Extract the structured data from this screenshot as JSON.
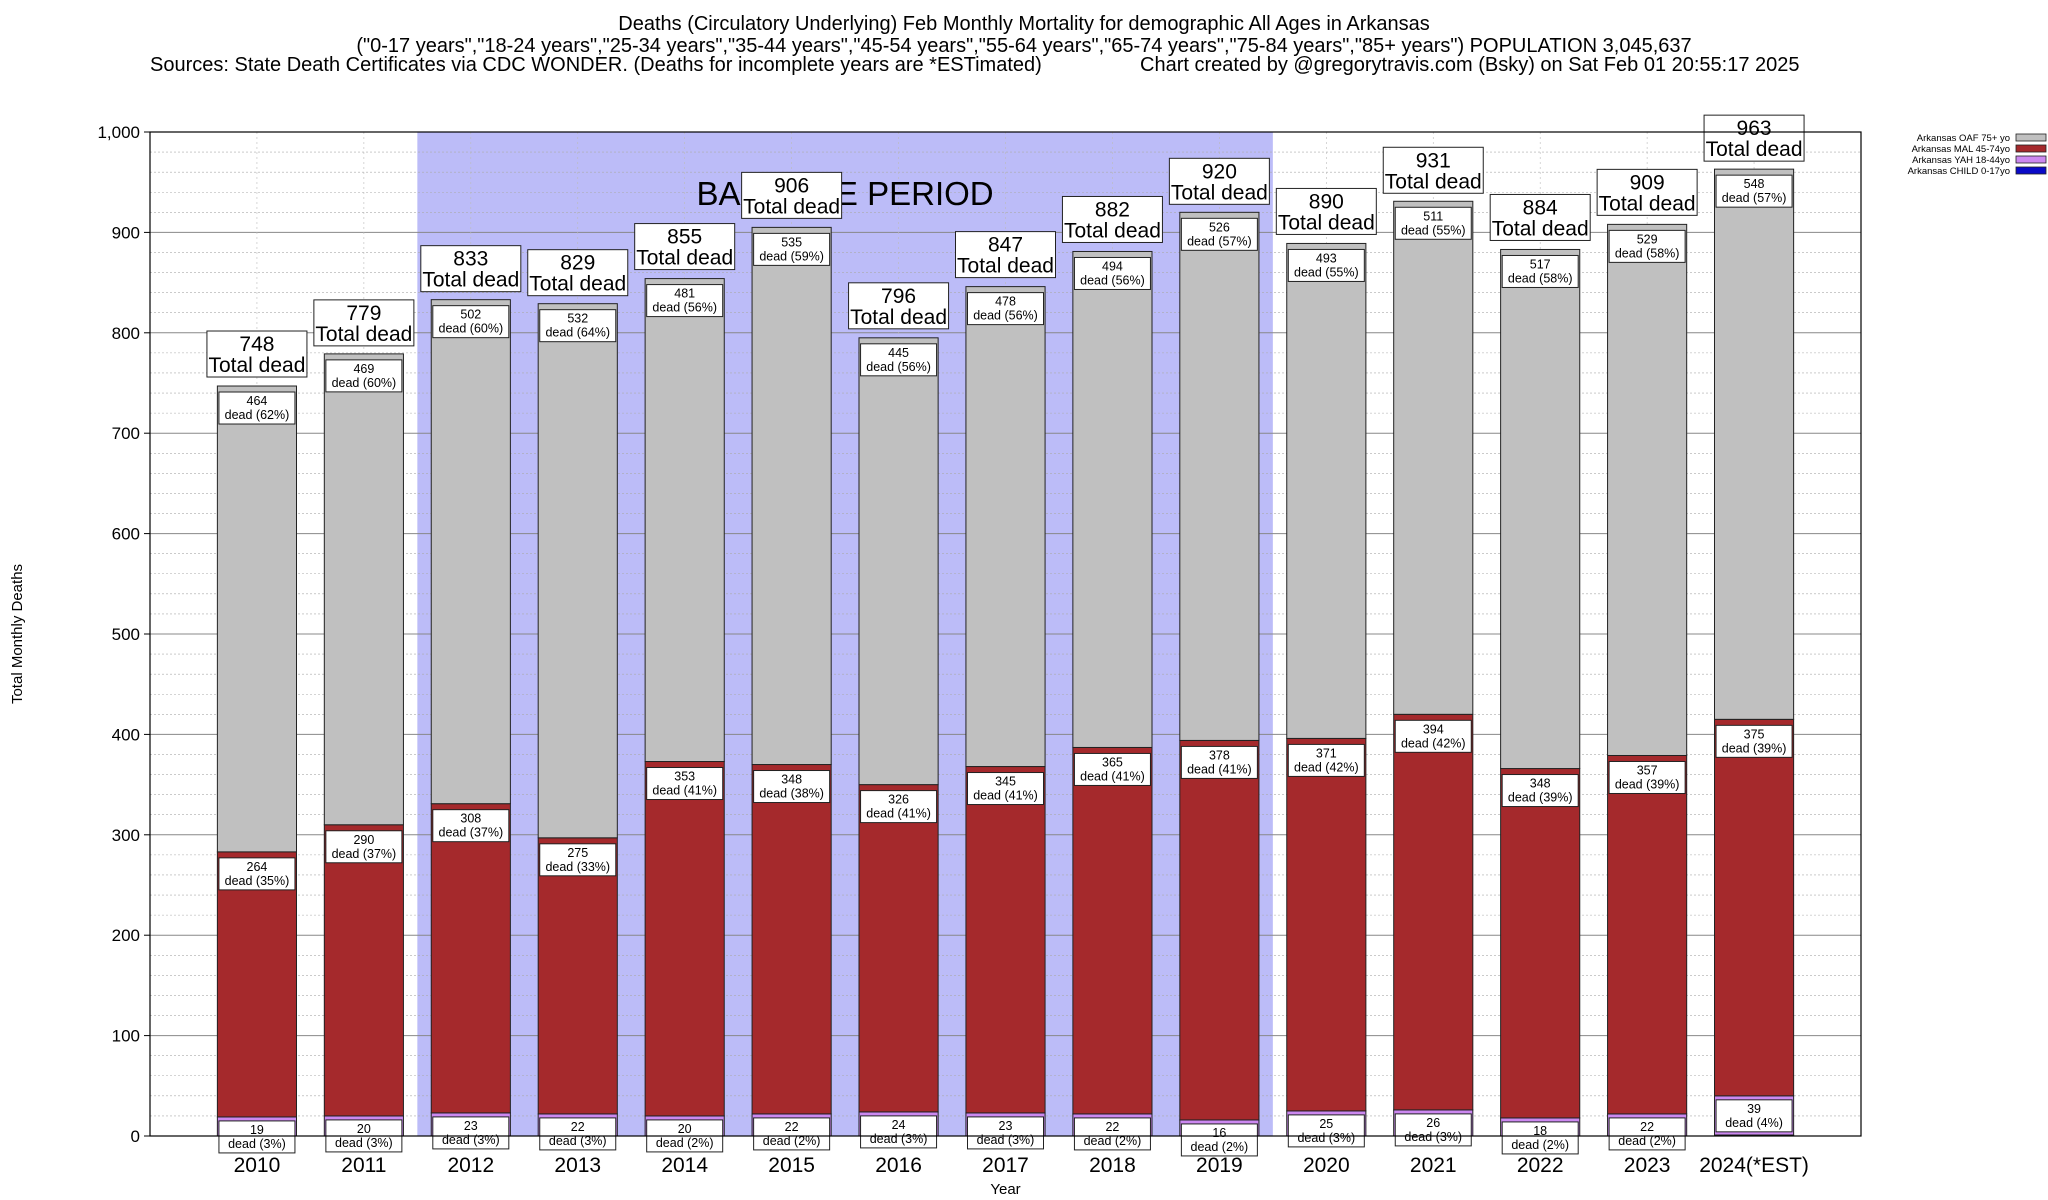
{
  "chart_data": {
    "type": "bar",
    "title": "Deaths (Circulatory Underlying) Feb Monthly Mortality for demographic All Ages in Arkansas",
    "subtitle": "(\"0-17 years\",\"18-24 years\",\"25-34 years\",\"35-44 years\",\"45-54 years\",\"55-64 years\",\"65-74 years\",\"75-84 years\",\"85+ years\") POPULATION 3,045,637",
    "sources": "Sources: State Death Certificates via CDC WONDER. (Deaths for incomplete years are *ESTimated)",
    "credit": "Chart created by @gregorytravis.com (Bsky) on Sat Feb 01 20:55:17 2025",
    "xlabel": "Year",
    "ylabel": "Total Monthly Deaths",
    "ylim": [
      0,
      1000
    ],
    "yticks": [
      "0",
      "100",
      "200",
      "300",
      "400",
      "500",
      "600",
      "700",
      "800",
      "900",
      "1,000"
    ],
    "grid": true,
    "legend_position": "top-right",
    "baseline_label": "BASELINE PERIOD",
    "baseline_categories": [
      "2012",
      "2019"
    ],
    "total_label": "Total dead",
    "dead_word": "dead",
    "categories": [
      "2010",
      "2011",
      "2012",
      "2013",
      "2014",
      "2015",
      "2016",
      "2017",
      "2018",
      "2019",
      "2020",
      "2021",
      "2022",
      "2023",
      "2024(*EST)"
    ],
    "totals": [
      748,
      779,
      833,
      829,
      855,
      906,
      796,
      847,
      882,
      920,
      890,
      931,
      884,
      909,
      963
    ],
    "series": [
      {
        "name": "Arkansas CHILD 0-17yo",
        "color": "#0a0ac8",
        "values": [
          0,
          0,
          0,
          0,
          0,
          0,
          0,
          0,
          0,
          0,
          0,
          0,
          0,
          0,
          1
        ]
      },
      {
        "name": "Arkansas YAH 18-44yo",
        "color": "#cc88f0",
        "values": [
          19,
          20,
          23,
          22,
          20,
          22,
          24,
          23,
          22,
          16,
          25,
          26,
          18,
          22,
          39
        ],
        "pct": [
          "3%",
          "3%",
          "3%",
          "3%",
          "2%",
          "2%",
          "3%",
          "3%",
          "2%",
          "2%",
          "3%",
          "3%",
          "2%",
          "2%",
          "4%"
        ]
      },
      {
        "name": "Arkansas MAL 45-74yo",
        "color": "#a5292c",
        "values": [
          264,
          290,
          308,
          275,
          353,
          348,
          326,
          345,
          365,
          378,
          371,
          394,
          348,
          357,
          375
        ],
        "pct": [
          "35%",
          "37%",
          "37%",
          "33%",
          "41%",
          "38%",
          "41%",
          "41%",
          "41%",
          "41%",
          "42%",
          "42%",
          "39%",
          "39%",
          "39%"
        ]
      },
      {
        "name": "Arkansas OAF 75+ yo",
        "color": "#c0c0c0",
        "values": [
          464,
          469,
          502,
          532,
          481,
          535,
          445,
          478,
          494,
          526,
          493,
          511,
          517,
          529,
          548
        ],
        "pct": [
          "62%",
          "60%",
          "60%",
          "64%",
          "56%",
          "59%",
          "56%",
          "56%",
          "56%",
          "57%",
          "55%",
          "55%",
          "58%",
          "58%",
          "57%"
        ]
      }
    ],
    "legend_order": [
      "Arkansas OAF 75+ yo",
      "Arkansas MAL 45-74yo",
      "Arkansas YAH 18-44yo",
      "Arkansas CHILD 0-17yo"
    ],
    "colors": {
      "baseline_shade": "#bcbcf8",
      "grid": "#aaaaaa"
    }
  }
}
